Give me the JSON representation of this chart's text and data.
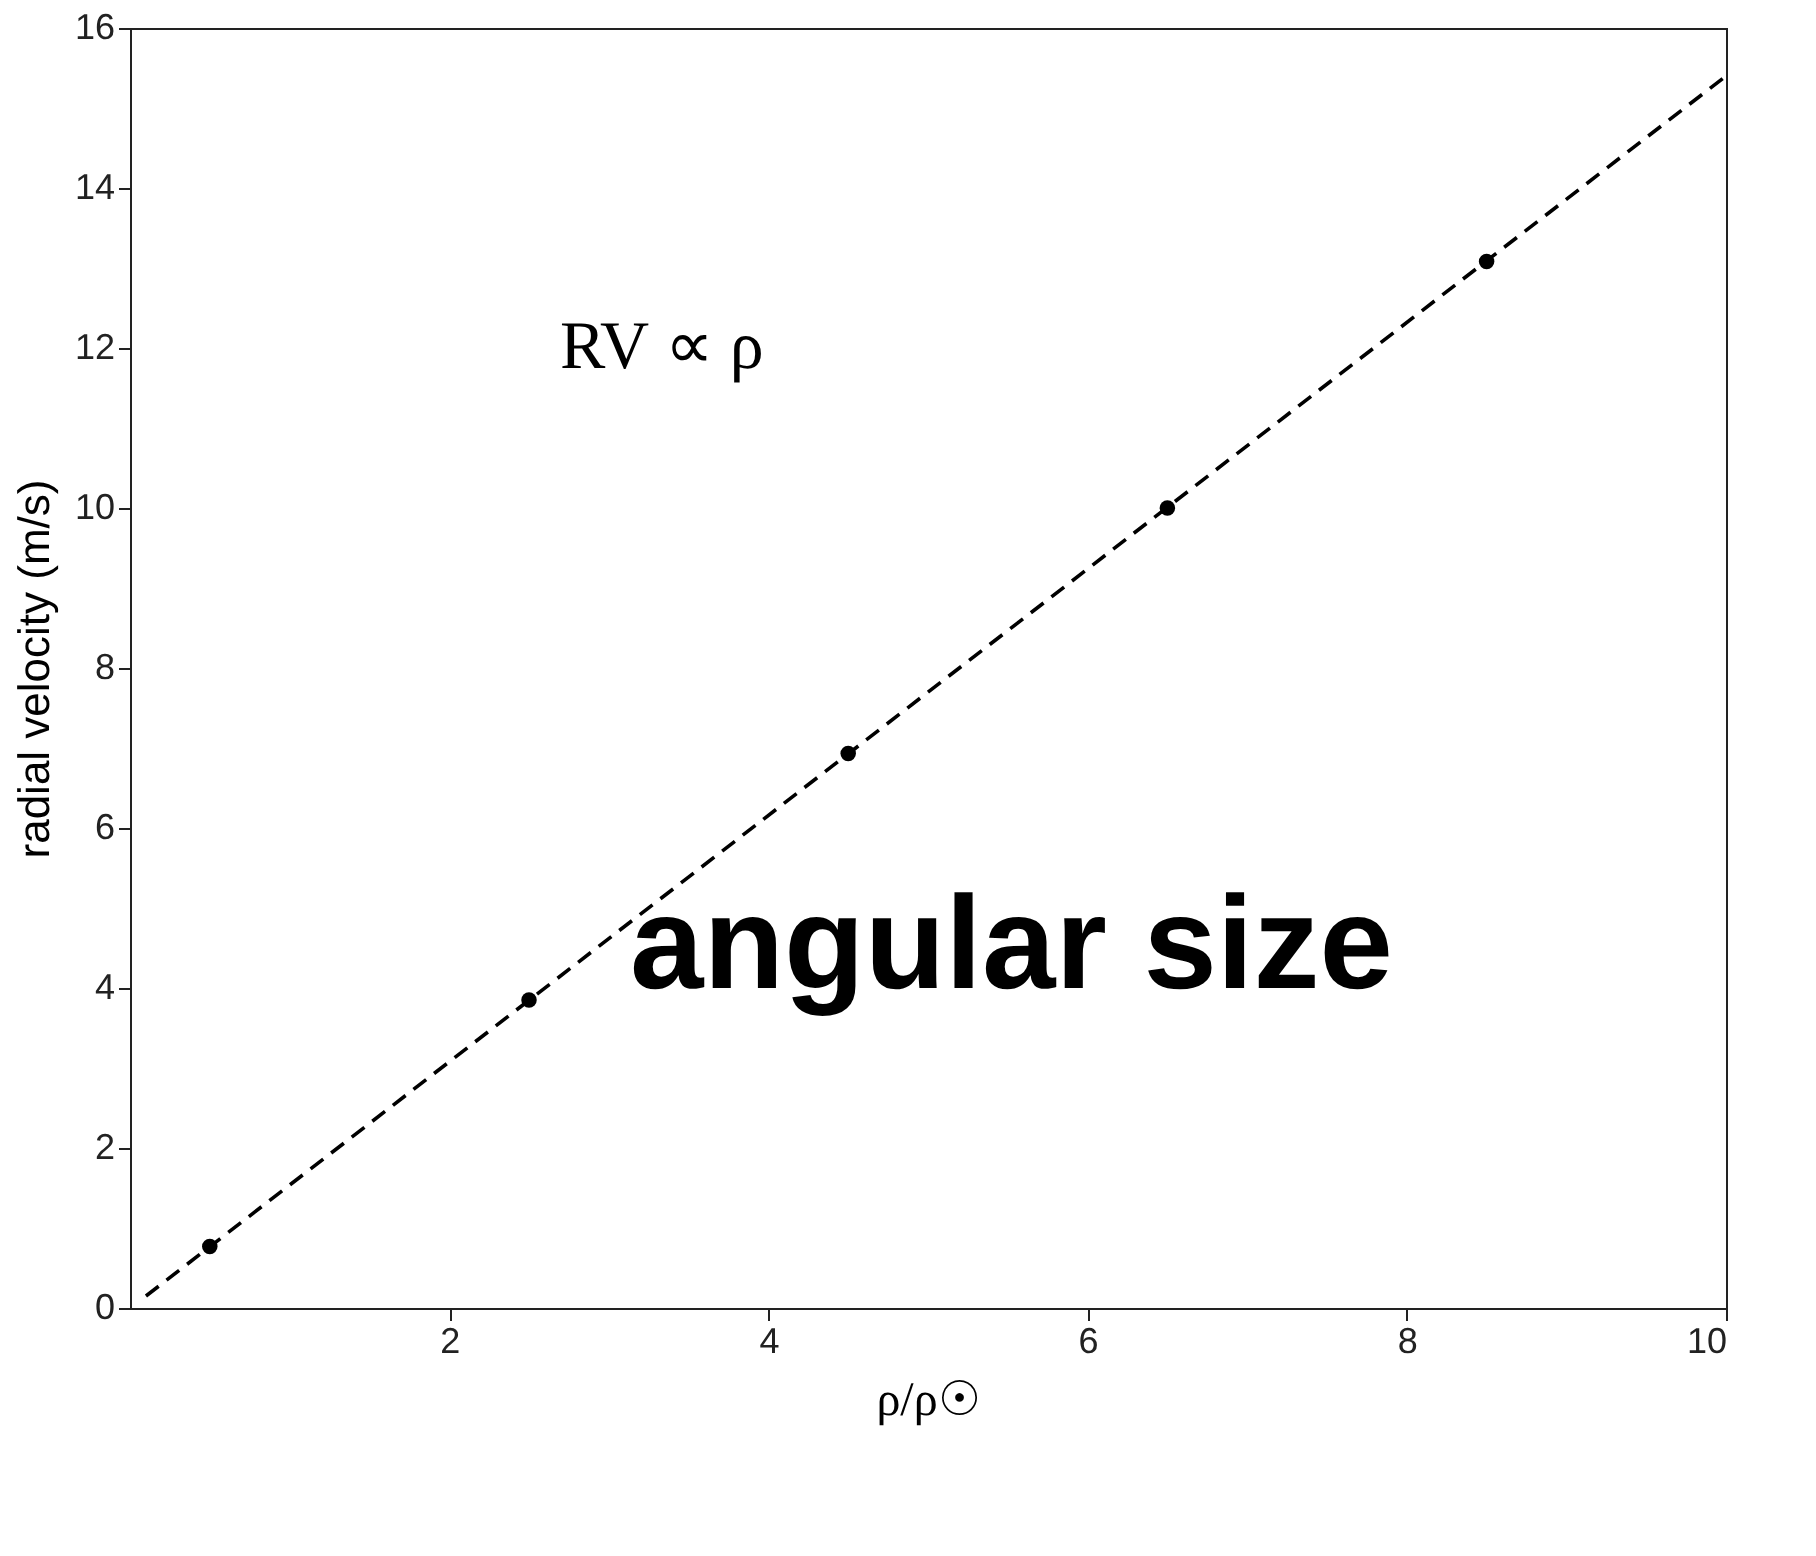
{
  "chart_data": {
    "type": "scatter",
    "xlabel": "ρ/ρ☉",
    "ylabel": "radial velocity (m/s)",
    "annotations": [
      "RV ∝ ρ",
      "angular size"
    ],
    "xlim": [
      0,
      10
    ],
    "ylim": [
      0,
      16
    ],
    "xticks": [
      2,
      4,
      6,
      8,
      10
    ],
    "yticks": [
      0,
      2,
      4,
      6,
      8,
      10,
      12,
      14,
      16
    ],
    "grid": false,
    "series": [
      {
        "marker": "circle",
        "color": "#000000",
        "x": [
          0.5,
          2.5,
          4.5,
          6.5,
          8.5
        ],
        "values": [
          0.77,
          3.85,
          6.93,
          10.0,
          13.08
        ]
      },
      {
        "type": "line",
        "color": "#000000",
        "line_style": "dashed",
        "x": [
          0.1,
          10
        ],
        "values": [
          0.15,
          15.4
        ]
      }
    ]
  }
}
